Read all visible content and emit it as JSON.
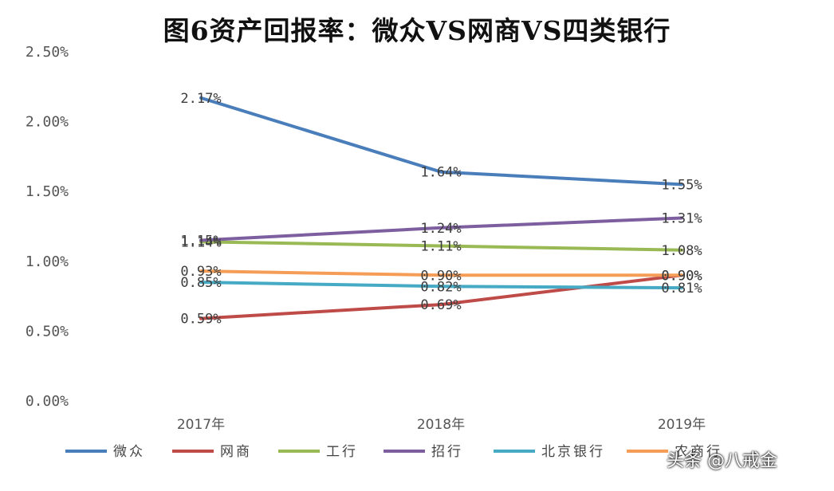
{
  "watermark": "头条 @八戒金",
  "chart_data": {
    "type": "line",
    "title": "图6资产回报率：微众VS网商VS四类银行",
    "categories": [
      "2017年",
      "2018年",
      "2019年"
    ],
    "y_ticks": [
      "0.00%",
      "0.50%",
      "1.00%",
      "1.50%",
      "2.00%",
      "2.50%"
    ],
    "ylim": [
      0,
      2.5
    ],
    "grid": false,
    "legend_position": "bottom",
    "series": [
      {
        "name": "微众",
        "color": "#4a7ebb",
        "values": [
          2.17,
          1.64,
          1.55
        ],
        "labels": [
          "2.17%",
          "1.64%",
          "1.55%"
        ]
      },
      {
        "name": "网商",
        "color": "#be4b48",
        "values": [
          0.59,
          0.69,
          0.9
        ],
        "labels": [
          "0.59%",
          "0.69%",
          "0.90%"
        ]
      },
      {
        "name": "工行",
        "color": "#98b954",
        "values": [
          1.14,
          1.11,
          1.08
        ],
        "labels": [
          "1.14%",
          "1.11%",
          "1.08%"
        ]
      },
      {
        "name": "招行",
        "color": "#7d5fa0",
        "values": [
          1.15,
          1.24,
          1.31
        ],
        "labels": [
          "1.15%",
          "1.24%",
          "1.31%"
        ]
      },
      {
        "name": "北京银行",
        "color": "#46aac5",
        "values": [
          0.85,
          0.82,
          0.81
        ],
        "labels": [
          "0.85%",
          "0.82%",
          "0.81%"
        ]
      },
      {
        "name": "农商行",
        "color": "#f59d56",
        "values": [
          0.93,
          0.9,
          0.9
        ],
        "labels": [
          "0.93%",
          "0.90%",
          "0.90%"
        ]
      }
    ]
  }
}
